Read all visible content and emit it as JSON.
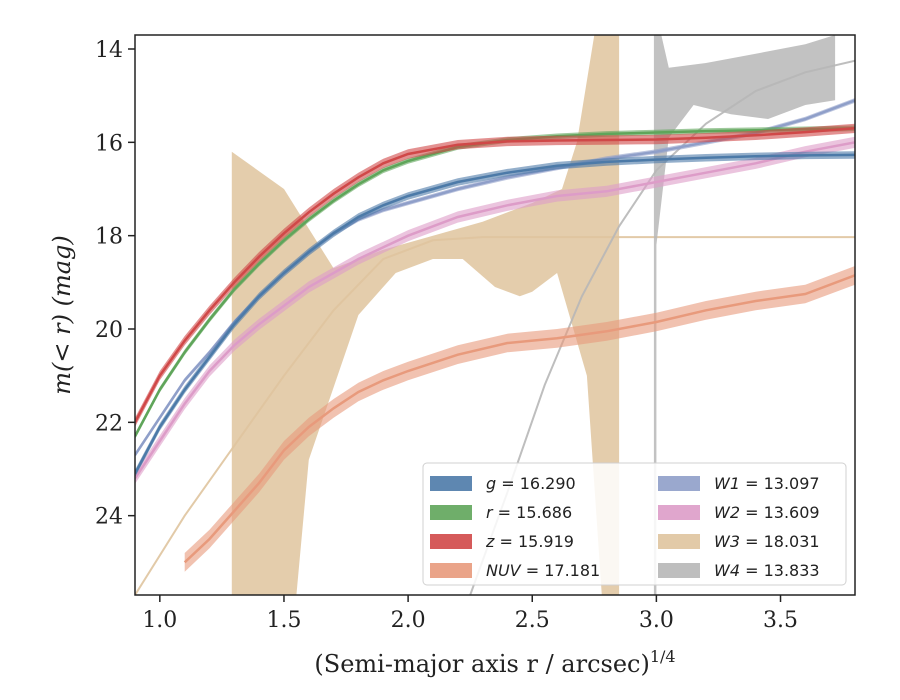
{
  "chart_data": {
    "type": "line",
    "xlabel": "(Semi-major axis r / arcsec)",
    "xlabel_sup": "1/4",
    "ylabel": "m(< r) (mag)",
    "xlim": [
      0.9,
      3.8
    ],
    "ylim": [
      25.7,
      13.7
    ],
    "y_inverted": true,
    "x_ticks": [
      {
        "value": 1.0,
        "label": "1.0"
      },
      {
        "value": 1.5,
        "label": "1.5"
      },
      {
        "value": 2.0,
        "label": "2.0"
      },
      {
        "value": 2.5,
        "label": "2.5"
      },
      {
        "value": 3.0,
        "label": "3.0"
      },
      {
        "value": 3.5,
        "label": "3.5"
      }
    ],
    "y_ticks": [
      {
        "value": 14,
        "label": "14"
      },
      {
        "value": 16,
        "label": "16"
      },
      {
        "value": 18,
        "label": "18"
      },
      {
        "value": 20,
        "label": "20"
      },
      {
        "value": 22,
        "label": "22"
      },
      {
        "value": 24,
        "label": "24"
      }
    ],
    "grid": false,
    "legend_position": "bottom-right",
    "legend_columns": 2,
    "series": [
      {
        "band": "g",
        "value": "16.290",
        "color": "#4c7aa8",
        "data": [
          [
            0.9,
            23.1
          ],
          [
            1.0,
            22.1
          ],
          [
            1.1,
            21.3
          ],
          [
            1.2,
            20.6
          ],
          [
            1.3,
            19.9
          ],
          [
            1.4,
            19.3
          ],
          [
            1.5,
            18.8
          ],
          [
            1.6,
            18.35
          ],
          [
            1.7,
            17.95
          ],
          [
            1.8,
            17.6
          ],
          [
            1.9,
            17.35
          ],
          [
            2.0,
            17.15
          ],
          [
            2.2,
            16.85
          ],
          [
            2.4,
            16.65
          ],
          [
            2.6,
            16.5
          ],
          [
            2.8,
            16.42
          ],
          [
            3.0,
            16.37
          ],
          [
            3.2,
            16.33
          ],
          [
            3.4,
            16.3
          ],
          [
            3.6,
            16.28
          ],
          [
            3.8,
            16.27
          ]
        ],
        "band_width": 0.08
      },
      {
        "band": "r",
        "value": "15.686",
        "color": "#5fa55a",
        "data": [
          [
            0.9,
            22.3
          ],
          [
            1.0,
            21.3
          ],
          [
            1.1,
            20.5
          ],
          [
            1.2,
            19.8
          ],
          [
            1.3,
            19.15
          ],
          [
            1.4,
            18.6
          ],
          [
            1.5,
            18.1
          ],
          [
            1.6,
            17.65
          ],
          [
            1.7,
            17.25
          ],
          [
            1.8,
            16.9
          ],
          [
            1.9,
            16.6
          ],
          [
            2.0,
            16.4
          ],
          [
            2.2,
            16.1
          ],
          [
            2.4,
            15.95
          ],
          [
            2.6,
            15.87
          ],
          [
            2.8,
            15.82
          ],
          [
            3.0,
            15.79
          ],
          [
            3.2,
            15.76
          ],
          [
            3.4,
            15.74
          ],
          [
            3.6,
            15.72
          ],
          [
            3.8,
            15.7
          ]
        ],
        "band_width": 0.06
      },
      {
        "band": "z",
        "value": "15.919",
        "color": "#d04848",
        "data": [
          [
            0.9,
            22.0
          ],
          [
            1.0,
            21.0
          ],
          [
            1.1,
            20.25
          ],
          [
            1.2,
            19.6
          ],
          [
            1.3,
            19.0
          ],
          [
            1.4,
            18.45
          ],
          [
            1.5,
            17.95
          ],
          [
            1.6,
            17.5
          ],
          [
            1.7,
            17.1
          ],
          [
            1.8,
            16.75
          ],
          [
            1.9,
            16.45
          ],
          [
            2.0,
            16.25
          ],
          [
            2.2,
            16.05
          ],
          [
            2.4,
            15.98
          ],
          [
            2.6,
            15.96
          ],
          [
            2.8,
            15.95
          ],
          [
            3.0,
            15.94
          ],
          [
            3.2,
            15.9
          ],
          [
            3.4,
            15.85
          ],
          [
            3.6,
            15.78
          ],
          [
            3.8,
            15.7
          ]
        ],
        "band_width": 0.1
      },
      {
        "band": "NUV",
        "value": "17.181",
        "color": "#e89a7c",
        "data": [
          [
            1.1,
            25.0
          ],
          [
            1.2,
            24.5
          ],
          [
            1.3,
            23.9
          ],
          [
            1.4,
            23.3
          ],
          [
            1.5,
            22.6
          ],
          [
            1.6,
            22.1
          ],
          [
            1.7,
            21.7
          ],
          [
            1.8,
            21.35
          ],
          [
            1.9,
            21.1
          ],
          [
            2.0,
            20.9
          ],
          [
            2.2,
            20.55
          ],
          [
            2.4,
            20.3
          ],
          [
            2.6,
            20.2
          ],
          [
            2.8,
            20.05
          ],
          [
            3.0,
            19.85
          ],
          [
            3.2,
            19.6
          ],
          [
            3.4,
            19.4
          ],
          [
            3.6,
            19.25
          ],
          [
            3.8,
            18.85
          ]
        ],
        "band_width": 0.2
      },
      {
        "band": "W1",
        "value": "13.097",
        "color": "#8f9fc9",
        "data": [
          [
            0.9,
            22.7
          ],
          [
            1.0,
            21.9
          ],
          [
            1.1,
            21.1
          ],
          [
            1.2,
            20.5
          ],
          [
            1.3,
            19.85
          ],
          [
            1.4,
            19.3
          ],
          [
            1.5,
            18.8
          ],
          [
            1.6,
            18.35
          ],
          [
            1.7,
            17.95
          ],
          [
            1.8,
            17.65
          ],
          [
            1.9,
            17.45
          ],
          [
            2.0,
            17.3
          ],
          [
            2.2,
            17.0
          ],
          [
            2.4,
            16.75
          ],
          [
            2.6,
            16.55
          ],
          [
            2.8,
            16.35
          ],
          [
            3.0,
            16.2
          ],
          [
            3.2,
            16.0
          ],
          [
            3.4,
            15.8
          ],
          [
            3.6,
            15.5
          ],
          [
            3.8,
            15.1
          ]
        ],
        "band_width": 0.05
      },
      {
        "band": "W2",
        "value": "13.609",
        "color": "#dd9cc8",
        "data": [
          [
            0.9,
            23.2
          ],
          [
            1.0,
            22.4
          ],
          [
            1.1,
            21.6
          ],
          [
            1.2,
            20.9
          ],
          [
            1.3,
            20.35
          ],
          [
            1.4,
            19.9
          ],
          [
            1.5,
            19.5
          ],
          [
            1.6,
            19.1
          ],
          [
            1.7,
            18.8
          ],
          [
            1.8,
            18.5
          ],
          [
            1.9,
            18.25
          ],
          [
            2.0,
            18.0
          ],
          [
            2.2,
            17.6
          ],
          [
            2.4,
            17.35
          ],
          [
            2.6,
            17.15
          ],
          [
            2.8,
            17.05
          ],
          [
            3.0,
            16.85
          ],
          [
            3.2,
            16.65
          ],
          [
            3.4,
            16.45
          ],
          [
            3.6,
            16.2
          ],
          [
            3.8,
            16.0
          ]
        ],
        "band_width": 0.12
      },
      {
        "band": "W3",
        "value": "18.031",
        "color": "#dfc49e",
        "upper": [
          [
            1.29,
            16.2
          ],
          [
            1.5,
            17.0
          ],
          [
            1.7,
            18.7
          ],
          [
            1.9,
            18.3
          ],
          [
            2.1,
            18.0
          ],
          [
            2.3,
            17.7
          ],
          [
            2.5,
            17.3
          ],
          [
            2.62,
            17.0
          ],
          [
            2.68,
            16.0
          ],
          [
            2.75,
            13.7
          ],
          [
            2.85,
            13.7
          ]
        ],
        "lower": [
          [
            2.85,
            25.7
          ],
          [
            2.78,
            25.7
          ],
          [
            2.72,
            21.0
          ],
          [
            2.6,
            18.8
          ],
          [
            2.5,
            19.2
          ],
          [
            2.45,
            19.3
          ],
          [
            2.35,
            19.1
          ],
          [
            2.22,
            18.5
          ],
          [
            2.1,
            18.5
          ],
          [
            1.95,
            18.8
          ],
          [
            1.8,
            19.7
          ],
          [
            1.6,
            22.8
          ],
          [
            1.55,
            25.7
          ],
          [
            1.29,
            25.7
          ]
        ],
        "line": [
          [
            0.9,
            25.7
          ],
          [
            1.1,
            24.0
          ],
          [
            1.3,
            22.5
          ],
          [
            1.5,
            21.0
          ],
          [
            1.7,
            19.6
          ],
          [
            1.9,
            18.5
          ],
          [
            2.1,
            18.1
          ],
          [
            2.3,
            18.03
          ],
          [
            3.8,
            18.03
          ]
        ]
      },
      {
        "band": "W4",
        "value": "13.833",
        "color": "#b7b7b7",
        "upper": [
          [
            2.99,
            13.7
          ],
          [
            3.02,
            13.7
          ],
          [
            3.05,
            14.4
          ],
          [
            3.2,
            14.3
          ],
          [
            3.4,
            14.1
          ],
          [
            3.6,
            13.9
          ],
          [
            3.72,
            13.7
          ]
        ],
        "lower": [
          [
            3.72,
            15.1
          ],
          [
            3.6,
            15.2
          ],
          [
            3.45,
            15.5
          ],
          [
            3.3,
            15.4
          ],
          [
            3.15,
            15.2
          ],
          [
            3.05,
            15.9
          ],
          [
            3.0,
            18.2
          ],
          [
            3.0,
            25.7
          ],
          [
            2.99,
            25.7
          ]
        ],
        "line": [
          [
            2.25,
            25.7
          ],
          [
            2.4,
            23.5
          ],
          [
            2.55,
            21.2
          ],
          [
            2.7,
            19.3
          ],
          [
            2.85,
            17.8
          ],
          [
            3.0,
            16.6
          ],
          [
            3.2,
            15.6
          ],
          [
            3.4,
            14.9
          ],
          [
            3.6,
            14.5
          ],
          [
            3.8,
            14.25
          ]
        ]
      }
    ]
  }
}
